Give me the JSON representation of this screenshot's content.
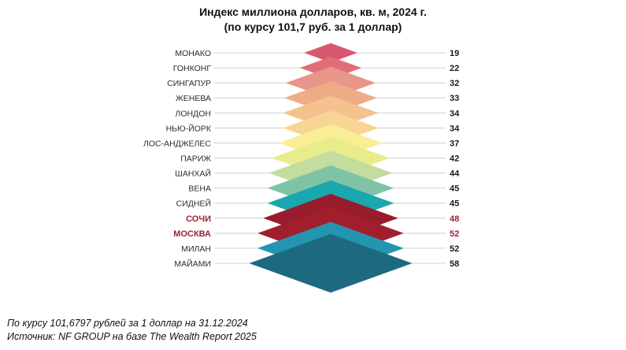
{
  "header": {
    "title": "Индекс миллиона долларов, кв. м, 2024 г.",
    "subtitle": "(по курсу 101,7 руб. за 1 доллар)"
  },
  "chart_data": {
    "type": "bar",
    "title": "Индекс миллиона долларов, кв. м, 2024 г.",
    "subtitle": "(по курсу 101,7 руб. за 1 доллар)",
    "categories": [
      "МОНАКО",
      "ГОНКОНГ",
      "СИНГАПУР",
      "ЖЕНЕВА",
      "ЛОНДОН",
      "НЬЮ-ЙОРК",
      "ЛОС-АНДЖЕЛЕС",
      "ПАРИЖ",
      "ШАНХАЙ",
      "ВЕНА",
      "СИДНЕЙ",
      "СОЧИ",
      "МОСКВА",
      "МИЛАН",
      "МАЙАМИ"
    ],
    "values": [
      19,
      22,
      32,
      33,
      34,
      34,
      37,
      42,
      44,
      45,
      45,
      48,
      52,
      52,
      58
    ],
    "value_labels": [
      "19",
      "22",
      "32",
      "33",
      "34",
      "34",
      "37",
      "42",
      "44",
      "45",
      "45",
      "48",
      "52",
      "52",
      "58"
    ],
    "colors": [
      "#d9566f",
      "#e06e79",
      "#e8958a",
      "#eeac86",
      "#f3c28e",
      "#f8d594",
      "#f9ee96",
      "#e8ec8a",
      "#c2dd9d",
      "#7fc3a5",
      "#1aa7ad",
      "#971c2c",
      "#a11f2d",
      "#2495b1",
      "#1d6a80"
    ],
    "highlighted": [
      "СОЧИ",
      "МОСКВА"
    ],
    "highlight_color": "#9b2335",
    "unit": "кв. м",
    "grid": false,
    "legend": "none"
  },
  "notes": {
    "line1": "По курсу 101,6797 рублей за 1 доллар на 31.12.2024",
    "line2": "Источник: NF GROUP на базе The Wealth Report 2025"
  }
}
